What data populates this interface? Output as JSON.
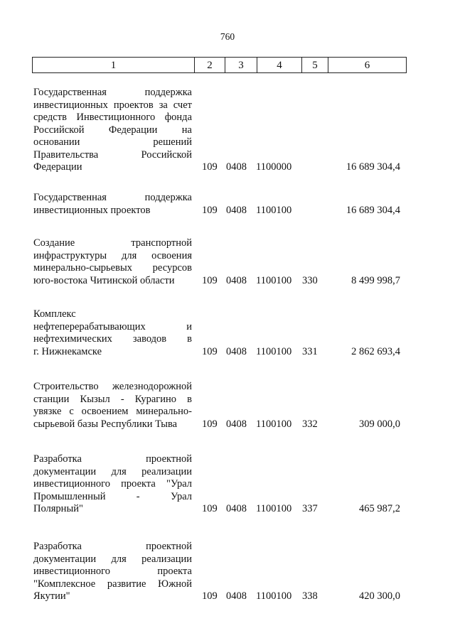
{
  "page_number": "760",
  "header": [
    "1",
    "2",
    "3",
    "4",
    "5",
    "6"
  ],
  "rows": [
    {
      "lines": [
        "Государственная поддержка",
        "инвестиционных проектов за счет",
        "средств Инвестиционного фонда",
        "Российской Федерации на",
        "основании решений",
        "Правительства Российской",
        "Федерации"
      ],
      "c2": "109",
      "c3": "0408",
      "c4": "1100000",
      "c5": "",
      "c6": "16 689 304,4"
    },
    {
      "lines": [
        "Государственная поддержка",
        "инвестиционных проектов"
      ],
      "c2": "109",
      "c3": "0408",
      "c4": "1100100",
      "c5": "",
      "c6": "16 689 304,4"
    },
    {
      "lines": [
        "Создание транспортной",
        "инфраструктуры для освоения",
        "минерально-сырьевых ресурсов",
        "юго-востока Читинской области"
      ],
      "c2": "109",
      "c3": "0408",
      "c4": "1100100",
      "c5": "330",
      "c6": "8 499 998,7"
    },
    {
      "lines": [
        "Комплекс",
        "нефтеперерабатывающих и",
        "нефтехимических заводов в",
        "г. Нижнекамске"
      ],
      "c2": "109",
      "c3": "0408",
      "c4": "1100100",
      "c5": "331",
      "c6": "2 862 693,4"
    },
    {
      "lines": [
        "Строительство железнодорожной",
        "станции Кызыл - Курагино в",
        "увязке с освоением минерально-",
        "сырьевой базы Республики Тыва"
      ],
      "c2": "109",
      "c3": "0408",
      "c4": "1100100",
      "c5": "332",
      "c6": "309 000,0"
    },
    {
      "lines": [
        "Разработка проектной",
        "документации для реализации",
        "инвестиционного проекта \"Урал",
        "Промышленный - Урал",
        "Полярный\""
      ],
      "c2": "109",
      "c3": "0408",
      "c4": "1100100",
      "c5": "337",
      "c6": "465 987,2"
    },
    {
      "lines": [
        "Разработка проектной",
        "документации для реализации",
        "инвестиционного проекта",
        "\"Комплексное развитие Южной",
        "Якутии\""
      ],
      "c2": "109",
      "c3": "0408",
      "c4": "1100100",
      "c5": "338",
      "c6": "420 300,0"
    }
  ]
}
